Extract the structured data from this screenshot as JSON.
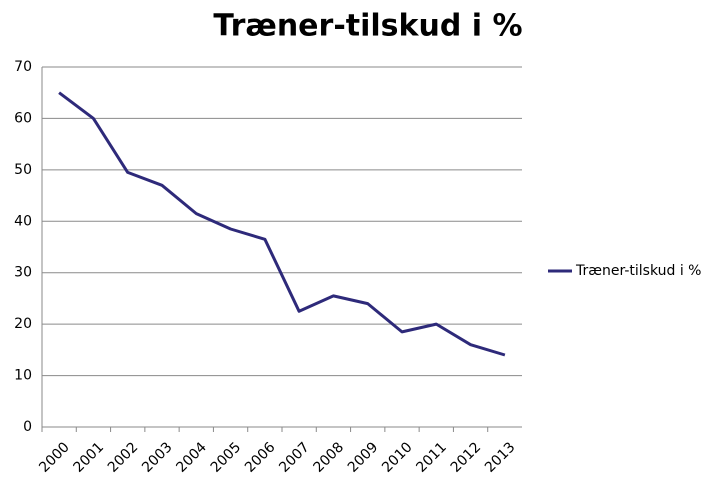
{
  "chart_data": {
    "type": "line",
    "title": "Træner-tilskud i %",
    "categories": [
      "2000",
      "2001",
      "2002",
      "2003",
      "2004",
      "2005",
      "2006",
      "2007",
      "2008",
      "2009",
      "2010",
      "2011",
      "2012",
      "2013"
    ],
    "series": [
      {
        "name": "Træner-tilskud i %",
        "color": "#2e2a7a",
        "values": [
          65,
          60,
          49.5,
          47,
          41.5,
          38.5,
          36.5,
          22.5,
          25.5,
          24,
          18.5,
          20,
          16,
          14
        ]
      }
    ],
    "ylim": [
      0,
      70
    ],
    "yticks": [
      0,
      10,
      20,
      30,
      40,
      50,
      60,
      70
    ],
    "grid": true,
    "legend": "right"
  }
}
